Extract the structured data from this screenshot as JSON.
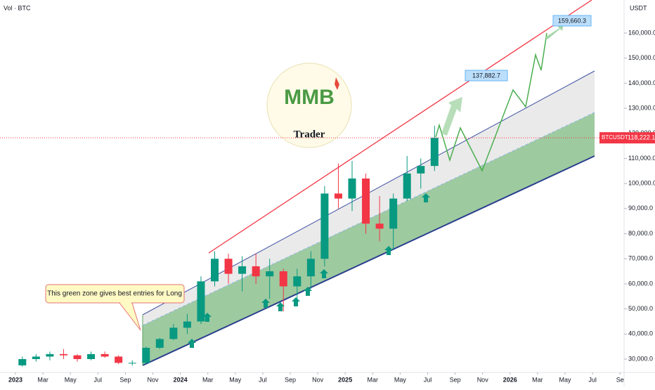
{
  "chart_data": {
    "type": "candlestick",
    "pane_label": "Vol · BTC",
    "currency": "USDT",
    "x": [
      "2023-01",
      "2023-02",
      "2023-03",
      "2023-04",
      "2023-05",
      "2023-06",
      "2023-07",
      "2023-08",
      "2023-09",
      "2023-10",
      "2023-11",
      "2023-12",
      "2024-01",
      "2024-02",
      "2024-03",
      "2024-04",
      "2024-05",
      "2024-06",
      "2024-07",
      "2024-08",
      "2024-09",
      "2024-10",
      "2024-11",
      "2024-12",
      "2025-01",
      "2025-02",
      "2025-03",
      "2025-04",
      "2025-05",
      "2025-06",
      "2025-07"
    ],
    "open": [
      27500,
      30000,
      31000,
      32000,
      31500,
      30000,
      32000,
      31000,
      28500,
      28500,
      34500,
      38000,
      42500,
      45000,
      61000,
      70000,
      64000,
      67000,
      63000,
      65000,
      59000,
      63000,
      70000,
      96000,
      94000,
      102000,
      84000,
      82000,
      94000,
      104000,
      107000
    ],
    "high": [
      31000,
      32000,
      33000,
      34000,
      32000,
      33000,
      33000,
      31500,
      29500,
      35000,
      38500,
      44000,
      48000,
      63000,
      73000,
      72000,
      71000,
      72000,
      70000,
      66000,
      66000,
      73000,
      99000,
      108000,
      109000,
      104000,
      95000,
      96000,
      111000,
      110000,
      123000
    ],
    "low": [
      27000,
      29000,
      29500,
      30000,
      29000,
      29500,
      30500,
      28000,
      27500,
      28000,
      34000,
      37500,
      40000,
      44000,
      59000,
      60000,
      57000,
      60000,
      54000,
      49000,
      52000,
      58000,
      67000,
      90000,
      89000,
      80000,
      77000,
      74000,
      93000,
      98000,
      105000
    ],
    "close": [
      30000,
      31000,
      32000,
      31500,
      30000,
      32000,
      31000,
      28500,
      28500,
      34500,
      38000,
      42500,
      45000,
      61000,
      70000,
      64000,
      67000,
      63000,
      65000,
      59000,
      63000,
      70000,
      96000,
      94000,
      102000,
      84000,
      82000,
      94000,
      104000,
      107000,
      118222.1
    ],
    "up_color": "#089981",
    "down_color": "#f23645",
    "ylim": [
      24680,
      173170
    ],
    "yticks": [
      {
        "value": 30000,
        "label": "30,000.0"
      },
      {
        "value": 40000,
        "label": "40,000.0"
      },
      {
        "value": 50000,
        "label": "50,000.0"
      },
      {
        "value": 60000,
        "label": "60,000.0"
      },
      {
        "value": 70000,
        "label": "70,000.0"
      },
      {
        "value": 80000,
        "label": "80,000.0"
      },
      {
        "value": 90000,
        "label": "90,000.0"
      },
      {
        "value": 100000,
        "label": "100,000.0"
      },
      {
        "value": 110000,
        "label": "110,000.0"
      },
      {
        "value": 120000,
        "label": "120,000.0"
      },
      {
        "value": 130000,
        "label": "130,000.0"
      },
      {
        "value": 140000,
        "label": "140,000.0"
      },
      {
        "value": 150000,
        "label": "150,000.0"
      },
      {
        "value": 160000,
        "label": "160,000.0"
      }
    ],
    "xticks": [
      {
        "value": "2023-01",
        "label": "2023"
      },
      {
        "value": "2023-03",
        "label": "Mar"
      },
      {
        "value": "2023-05",
        "label": "May"
      },
      {
        "value": "2023-07",
        "label": "Jul"
      },
      {
        "value": "2023-09",
        "label": "Sep"
      },
      {
        "value": "2023-11",
        "label": "Nov"
      },
      {
        "value": "2024-01",
        "label": "2024"
      },
      {
        "value": "2024-03",
        "label": "Mar"
      },
      {
        "value": "2024-05",
        "label": "May"
      },
      {
        "value": "2024-07",
        "label": "Jul"
      },
      {
        "value": "2024-09",
        "label": "Sep"
      },
      {
        "value": "2024-11",
        "label": "Nov"
      },
      {
        "value": "2025-01",
        "label": "2025"
      },
      {
        "value": "2025-03",
        "label": "Mar"
      },
      {
        "value": "2025-05",
        "label": "May"
      },
      {
        "value": "2025-07",
        "label": "Jul"
      },
      {
        "value": "2025-09",
        "label": "Sep"
      },
      {
        "value": "2025-11",
        "label": "Nov"
      },
      {
        "value": "2026-01",
        "label": "2026"
      },
      {
        "value": "2026-03",
        "label": "Mar"
      },
      {
        "value": "2026-05",
        "label": "May"
      },
      {
        "value": "2026-07",
        "label": "Jul"
      },
      {
        "value": "2026-09",
        "label": "Se"
      }
    ],
    "price_line": {
      "name": "BTCUSDT",
      "value": 118222.1,
      "label": "118,222.1",
      "color": "#f23645"
    },
    "annotations": [
      "159,660.3",
      "137,882.7",
      "This green zone gives best entries for Long"
    ],
    "logo": {
      "mark": "MMB",
      "text": "Trader"
    }
  }
}
